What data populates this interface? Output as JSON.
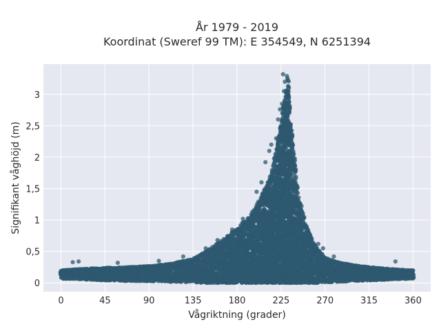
{
  "chart_data": {
    "type": "scatter",
    "title_line1": "År 1979 - 2019",
    "title_line2": "Koordinat (Sweref 99 TM): E 354549, N 6251394",
    "xlabel": "Vågriktning (grader)",
    "ylabel": "Signifikant våghöjd (m)",
    "xlim": [
      -18,
      378
    ],
    "ylim": [
      -0.14,
      3.48
    ],
    "xticks": [
      0,
      45,
      90,
      135,
      180,
      225,
      270,
      315,
      360
    ],
    "xtick_labels": [
      "0",
      "45",
      "90",
      "135",
      "180",
      "225",
      "270",
      "315",
      "360"
    ],
    "yticks": [
      0,
      0.5,
      1,
      1.5,
      2,
      2.5,
      3
    ],
    "ytick_labels": [
      "0",
      "0,5",
      "1",
      "1,5",
      "2",
      "2,5",
      "3"
    ],
    "grid": true,
    "point_color": "#2e5870",
    "plot_background": "#e5e8f0",
    "envelope": {
      "direction_deg": [
        0,
        20,
        45,
        70,
        90,
        110,
        135,
        150,
        165,
        180,
        195,
        205,
        215,
        222,
        228,
        232,
        236,
        242,
        250,
        260,
        270,
        285,
        300,
        315,
        330,
        345,
        360
      ],
      "upper_m": [
        0.2,
        0.22,
        0.24,
        0.25,
        0.27,
        0.3,
        0.38,
        0.52,
        0.68,
        0.86,
        1.1,
        1.38,
        1.75,
        2.25,
        2.85,
        3.3,
        2.4,
        1.45,
        0.95,
        0.58,
        0.4,
        0.32,
        0.28,
        0.25,
        0.23,
        0.21,
        0.2
      ],
      "lower_m": [
        0.07,
        0.06,
        0.04,
        0.03,
        0.03,
        0.02,
        0.01,
        0.0,
        0.0,
        0.0,
        0.0,
        0.0,
        0.0,
        0.0,
        0.0,
        0.0,
        0.0,
        0.0,
        0.0,
        0.0,
        0.01,
        0.02,
        0.03,
        0.04,
        0.05,
        0.06,
        0.07
      ]
    },
    "outliers": [
      {
        "x": 227,
        "y": 3.32
      },
      {
        "x": 231,
        "y": 3.29
      },
      {
        "x": 229,
        "y": 3.2
      },
      {
        "x": 233,
        "y": 3.1
      },
      {
        "x": 228,
        "y": 3.05
      },
      {
        "x": 224,
        "y": 2.76
      },
      {
        "x": 222,
        "y": 2.6
      },
      {
        "x": 226,
        "y": 2.85
      },
      {
        "x": 220,
        "y": 2.3
      },
      {
        "x": 213,
        "y": 2.1
      },
      {
        "x": 209,
        "y": 1.92
      },
      {
        "x": 215,
        "y": 2.2
      },
      {
        "x": 205,
        "y": 1.6
      },
      {
        "x": 200,
        "y": 1.45
      },
      {
        "x": 238,
        "y": 2.05
      },
      {
        "x": 241,
        "y": 1.55
      },
      {
        "x": 246,
        "y": 1.22
      },
      {
        "x": 250,
        "y": 0.88
      },
      {
        "x": 255,
        "y": 0.75
      },
      {
        "x": 263,
        "y": 0.62
      },
      {
        "x": 268,
        "y": 0.55
      },
      {
        "x": 279,
        "y": 0.42
      },
      {
        "x": 342,
        "y": 0.34
      },
      {
        "x": 12,
        "y": 0.33
      },
      {
        "x": 18,
        "y": 0.34
      },
      {
        "x": 58,
        "y": 0.32
      },
      {
        "x": 100,
        "y": 0.35
      },
      {
        "x": 125,
        "y": 0.42
      },
      {
        "x": 148,
        "y": 0.55
      },
      {
        "x": 160,
        "y": 0.68
      },
      {
        "x": 175,
        "y": 0.85
      },
      {
        "x": 186,
        "y": 1.02
      }
    ]
  }
}
